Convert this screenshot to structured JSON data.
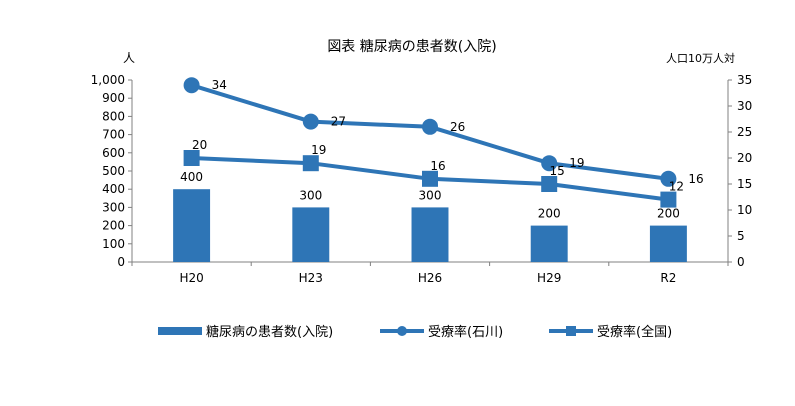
{
  "chart_data": {
    "type": "bar",
    "title": "図表  糖尿病の患者数(入院)",
    "y_left_unit": "人",
    "y_right_unit": "人口10万人対",
    "categories": [
      "H20",
      "H23",
      "H26",
      "H29",
      "R2"
    ],
    "y_left_ticks": [
      "0",
      "100",
      "200",
      "300",
      "400",
      "500",
      "600",
      "700",
      "800",
      "900",
      "1,000"
    ],
    "y_right_ticks": [
      "0",
      "5",
      "10",
      "15",
      "20",
      "25",
      "30",
      "35"
    ],
    "ylim_left": [
      0,
      1000
    ],
    "ylim_right": [
      0,
      35
    ],
    "grid": false,
    "legend_position": "bottom",
    "series": [
      {
        "name": "糖尿病の患者数(入院)",
        "kind": "bar",
        "axis": "left",
        "values": [
          400,
          300,
          300,
          200,
          200
        ],
        "labels": [
          "400",
          "300",
          "300",
          "200",
          "200"
        ]
      },
      {
        "name": "受療率(石川)",
        "kind": "line",
        "marker": "circle",
        "axis": "right",
        "values": [
          34,
          27,
          26,
          19,
          16
        ],
        "labels": [
          "34",
          "27",
          "26",
          "19",
          "16"
        ]
      },
      {
        "name": "受療率(全国)",
        "kind": "line",
        "marker": "square",
        "axis": "right",
        "values": [
          20,
          19,
          16,
          15,
          12
        ],
        "labels": [
          "20",
          "19",
          "16",
          "15",
          "12"
        ]
      }
    ],
    "color": "#2e75b6"
  }
}
